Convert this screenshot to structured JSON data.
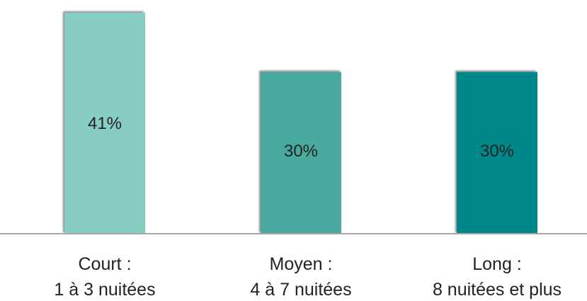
{
  "chart_data": {
    "type": "bar",
    "title": "",
    "xlabel": "",
    "ylabel": "",
    "ylim": [
      0,
      41
    ],
    "grid": false,
    "legend": "none",
    "categories": [
      [
        "Court :",
        "1 à 3 nuitées"
      ],
      [
        "Moyen :",
        "4 à 7 nuitées"
      ],
      [
        "Long :",
        "8 nuitées et plus"
      ]
    ],
    "values": [
      41,
      30,
      30
    ],
    "data_labels": [
      "41%",
      "30%",
      "30%"
    ],
    "colors": [
      "#88cdc3",
      "#4aab9f",
      "#00878a"
    ],
    "axis_color": "#a6a6a6"
  }
}
